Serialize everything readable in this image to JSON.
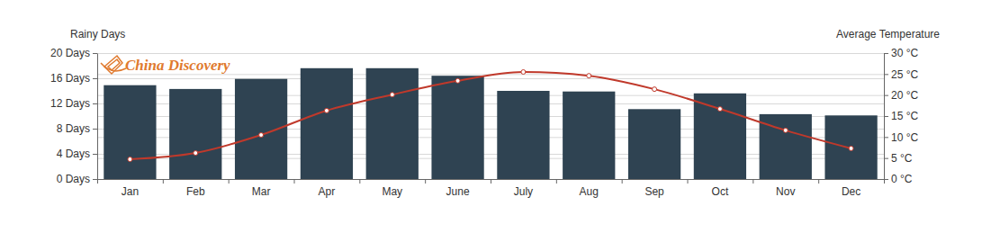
{
  "chart_data": {
    "type": "bar",
    "y_label": "Rainy Days",
    "y2_label": "Average Temperature",
    "annotations": [
      "China Discovery"
    ],
    "categories": [
      "Jan",
      "Feb",
      "Mar",
      "Apr",
      "May",
      "June",
      "July",
      "Aug",
      "Sep",
      "Oct",
      "Nov",
      "Dec"
    ],
    "series": [
      {
        "type": "bar",
        "color": "#2f4352",
        "values": [
          14.9,
          14.3,
          15.9,
          17.6,
          17.6,
          16.4,
          14.0,
          13.9,
          11.1,
          13.6,
          10.3,
          10.1
        ]
      },
      {
        "type": "line",
        "axis": "y2",
        "color": "#c0392b",
        "marker": "circle",
        "line_style": "solid",
        "values": [
          4.7,
          6.2,
          10.5,
          16.3,
          20.1,
          23.4,
          25.5,
          24.6,
          21.4,
          16.7,
          11.6,
          7.3
        ]
      }
    ],
    "ylim": [
      0,
      20
    ],
    "yticks": [
      {
        "value": 0,
        "label": "0 Days"
      },
      {
        "value": 4,
        "label": "4 Days"
      },
      {
        "value": 8,
        "label": "8 Days"
      },
      {
        "value": 12,
        "label": "12 Days"
      },
      {
        "value": 16,
        "label": "16 Days"
      },
      {
        "value": 20,
        "label": "20 Days"
      }
    ],
    "y2lim": [
      0,
      30
    ],
    "y2ticks": [
      {
        "value": 0,
        "label": "0 °C"
      },
      {
        "value": 5,
        "label": "5 °C"
      },
      {
        "value": 10,
        "label": "10 °C"
      },
      {
        "value": 15,
        "label": "15 °C"
      },
      {
        "value": 20,
        "label": "20 °C"
      },
      {
        "value": 25,
        "label": "25 °C"
      },
      {
        "value": 30,
        "label": "30 °C"
      }
    ],
    "grid": true
  }
}
